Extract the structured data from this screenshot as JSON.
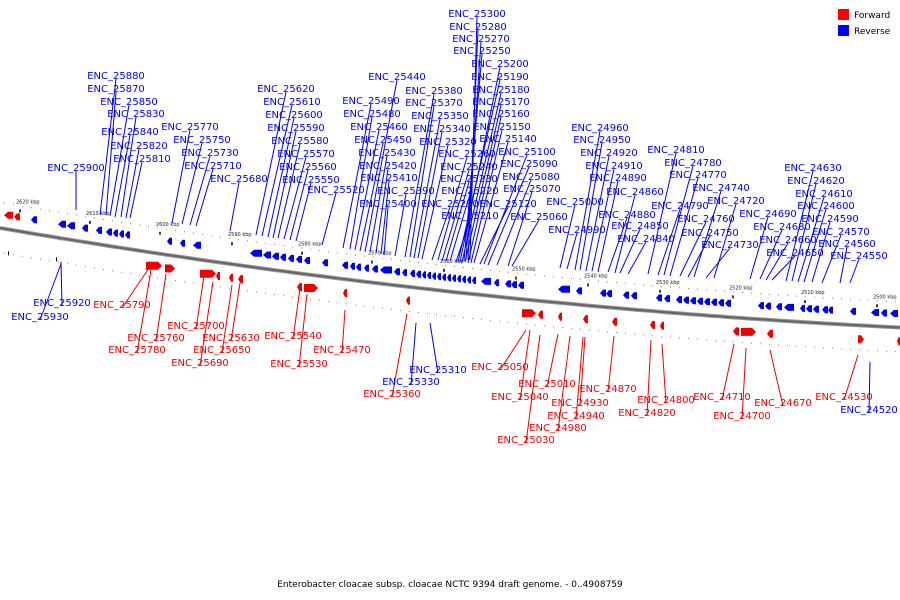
{
  "caption": "Enterobacter cloacae subsp. cloacae NCTC 9394 draft genome. - 0..4908759",
  "legend": [
    {
      "label": "Forward",
      "color": "#ff0000"
    },
    {
      "label": "Reverse",
      "color": "#0000ff"
    }
  ],
  "colors": {
    "forward": "#ee0000",
    "reverse": "#0000ee",
    "backbone": "#666666"
  },
  "scale_ticks": [
    "2620 kbp",
    "2610 kbp",
    "2600 kbp",
    "2590 kbp",
    "2580 kbp",
    "2570 kbp",
    "2560 kbp",
    "2550 kbp",
    "2540 kbp",
    "2530 kbp",
    "2520 kbp",
    "2510 kbp",
    "2500 kbp"
  ],
  "reverse_genes": [
    "ENC_25930",
    "ENC_25920",
    "ENC_25900",
    "ENC_25880",
    "ENC_25870",
    "ENC_25850",
    "ENC_25840",
    "ENC_25830",
    "ENC_25820",
    "ENC_25810",
    "ENC_25770",
    "ENC_25750",
    "ENC_25730",
    "ENC_25710",
    "ENC_25680",
    "ENC_25620",
    "ENC_25610",
    "ENC_25600",
    "ENC_25590",
    "ENC_25580",
    "ENC_25570",
    "ENC_25560",
    "ENC_25550",
    "ENC_25520",
    "ENC_25490",
    "ENC_25480",
    "ENC_25460",
    "ENC_25450",
    "ENC_25440",
    "ENC_25430",
    "ENC_25420",
    "ENC_25410",
    "ENC_25400",
    "ENC_25390",
    "ENC_25380",
    "ENC_25370",
    "ENC_25350",
    "ENC_25340",
    "ENC_25330",
    "ENC_25320",
    "ENC_25310",
    "ENC_25300",
    "ENC_25290",
    "ENC_25280",
    "ENC_25270",
    "ENC_25260",
    "ENC_25250",
    "ENC_25240",
    "ENC_25230",
    "ENC_25220",
    "ENC_25210",
    "ENC_25200",
    "ENC_25190",
    "ENC_25180",
    "ENC_25170",
    "ENC_25160",
    "ENC_25150",
    "ENC_25140",
    "ENC_25120",
    "ENC_25100",
    "ENC_25090",
    "ENC_25080",
    "ENC_25070",
    "ENC_25060",
    "ENC_25000",
    "ENC_24990",
    "ENC_24960",
    "ENC_24950",
    "ENC_24920",
    "ENC_24910",
    "ENC_24890",
    "ENC_24880",
    "ENC_24860",
    "ENC_24850",
    "ENC_24840",
    "ENC_24810",
    "ENC_24790",
    "ENC_24780",
    "ENC_24770",
    "ENC_24760",
    "ENC_24750",
    "ENC_24740",
    "ENC_24730",
    "ENC_24720",
    "ENC_24690",
    "ENC_24680",
    "ENC_24660",
    "ENC_24650",
    "ENC_24630",
    "ENC_24620",
    "ENC_24610",
    "ENC_24600",
    "ENC_24590",
    "ENC_24570",
    "ENC_24560",
    "ENC_24550",
    "ENC_24520"
  ],
  "forward_genes": [
    "ENC_25790",
    "ENC_25780",
    "ENC_25760",
    "ENC_25700",
    "ENC_25690",
    "ENC_25650",
    "ENC_25630",
    "ENC_25540",
    "ENC_25530",
    "ENC_25470",
    "ENC_25360",
    "ENC_25050",
    "ENC_25040",
    "ENC_25030",
    "ENC_25010",
    "ENC_24980",
    "ENC_24940",
    "ENC_24930",
    "ENC_24870",
    "ENC_24820",
    "ENC_24800",
    "ENC_24710",
    "ENC_24700",
    "ENC_24670",
    "ENC_24530"
  ]
}
